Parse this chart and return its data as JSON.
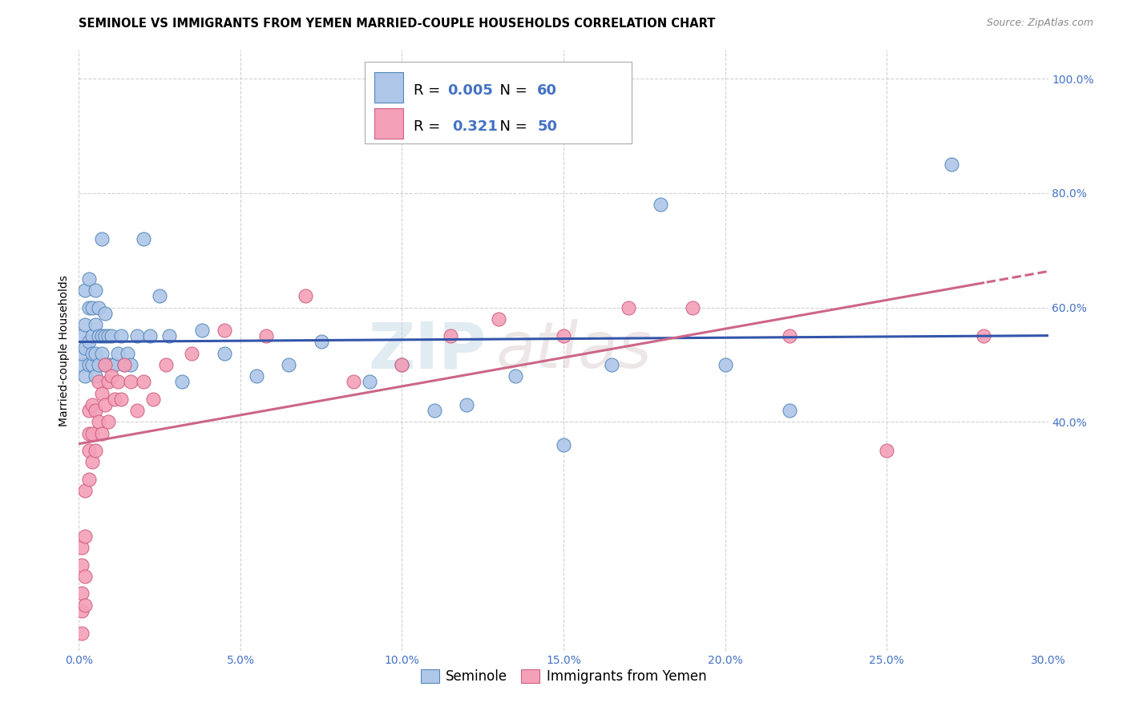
{
  "title": "SEMINOLE VS IMMIGRANTS FROM YEMEN MARRIED-COUPLE HOUSEHOLDS CORRELATION CHART",
  "source": "Source: ZipAtlas.com",
  "ylabel": "Married-couple Households",
  "x_min": 0.0,
  "x_max": 0.3,
  "y_min": 0.0,
  "y_max": 1.05,
  "x_tick_labels": [
    "0.0%",
    "5.0%",
    "10.0%",
    "15.0%",
    "20.0%",
    "25.0%",
    "30.0%"
  ],
  "x_tick_values": [
    0.0,
    0.05,
    0.1,
    0.15,
    0.2,
    0.25,
    0.3
  ],
  "y_tick_labels": [
    "40.0%",
    "60.0%",
    "80.0%",
    "100.0%"
  ],
  "y_tick_values": [
    0.4,
    0.6,
    0.8,
    1.0
  ],
  "seminole_color": "#aec6e8",
  "seminole_edge_color": "#5588bb",
  "yemen_color": "#f4a0b8",
  "yemen_edge_color": "#d06080",
  "trend_seminole_color": "#3355aa",
  "trend_yemen_color": "#cc6688",
  "background_color": "#ffffff",
  "grid_color": "#cccccc",
  "watermark_color": "#d8e8f0",
  "seminole_r": "0.005",
  "seminole_n": "60",
  "yemen_r": "0.321",
  "yemen_n": "50",
  "legend_r_color": "#4472c4",
  "title_fontsize": 10.5,
  "tick_fontsize": 10,
  "seminole_scatter_x": [
    0.001,
    0.001,
    0.001,
    0.002,
    0.002,
    0.002,
    0.002,
    0.003,
    0.003,
    0.003,
    0.003,
    0.004,
    0.004,
    0.004,
    0.004,
    0.005,
    0.005,
    0.005,
    0.005,
    0.006,
    0.006,
    0.006,
    0.007,
    0.007,
    0.007,
    0.008,
    0.008,
    0.008,
    0.009,
    0.009,
    0.01,
    0.01,
    0.011,
    0.012,
    0.013,
    0.014,
    0.015,
    0.016,
    0.018,
    0.02,
    0.022,
    0.025,
    0.028,
    0.032,
    0.038,
    0.045,
    0.055,
    0.065,
    0.075,
    0.09,
    0.1,
    0.11,
    0.12,
    0.135,
    0.15,
    0.165,
    0.18,
    0.2,
    0.22,
    0.27
  ],
  "seminole_scatter_y": [
    0.5,
    0.52,
    0.55,
    0.48,
    0.53,
    0.57,
    0.63,
    0.5,
    0.54,
    0.6,
    0.65,
    0.5,
    0.52,
    0.55,
    0.6,
    0.48,
    0.52,
    0.57,
    0.63,
    0.5,
    0.55,
    0.6,
    0.52,
    0.55,
    0.72,
    0.5,
    0.55,
    0.59,
    0.5,
    0.55,
    0.5,
    0.55,
    0.5,
    0.52,
    0.55,
    0.5,
    0.52,
    0.5,
    0.55,
    0.72,
    0.55,
    0.62,
    0.55,
    0.47,
    0.56,
    0.52,
    0.48,
    0.5,
    0.54,
    0.47,
    0.5,
    0.42,
    0.43,
    0.48,
    0.36,
    0.5,
    0.78,
    0.5,
    0.42,
    0.85
  ],
  "yemen_scatter_x": [
    0.001,
    0.001,
    0.001,
    0.001,
    0.001,
    0.002,
    0.002,
    0.002,
    0.002,
    0.003,
    0.003,
    0.003,
    0.003,
    0.004,
    0.004,
    0.004,
    0.005,
    0.005,
    0.006,
    0.006,
    0.007,
    0.007,
    0.008,
    0.008,
    0.009,
    0.009,
    0.01,
    0.011,
    0.012,
    0.013,
    0.014,
    0.016,
    0.018,
    0.02,
    0.023,
    0.027,
    0.035,
    0.045,
    0.058,
    0.07,
    0.085,
    0.1,
    0.115,
    0.13,
    0.15,
    0.17,
    0.19,
    0.22,
    0.25,
    0.28
  ],
  "yemen_scatter_y": [
    0.03,
    0.07,
    0.1,
    0.15,
    0.18,
    0.08,
    0.13,
    0.2,
    0.28,
    0.3,
    0.35,
    0.38,
    0.42,
    0.33,
    0.38,
    0.43,
    0.35,
    0.42,
    0.4,
    0.47,
    0.38,
    0.45,
    0.43,
    0.5,
    0.4,
    0.47,
    0.48,
    0.44,
    0.47,
    0.44,
    0.5,
    0.47,
    0.42,
    0.47,
    0.44,
    0.5,
    0.52,
    0.56,
    0.55,
    0.62,
    0.47,
    0.5,
    0.55,
    0.58,
    0.55,
    0.6,
    0.6,
    0.55,
    0.35,
    0.55
  ]
}
